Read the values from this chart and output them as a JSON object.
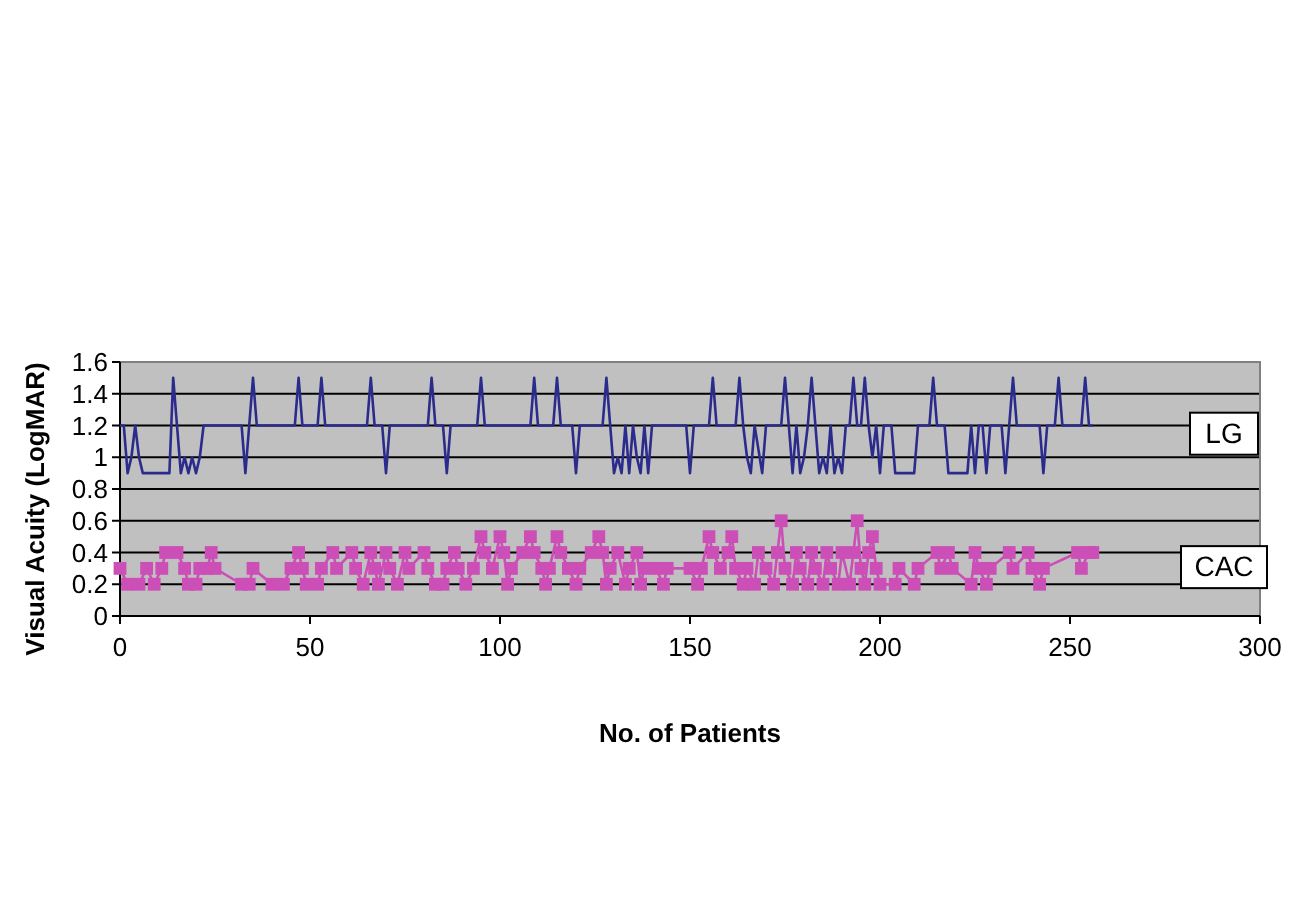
{
  "chart_data": {
    "type": "line",
    "xlabel": "No. of Patients",
    "ylabel": "Visual Acuity (LogMAR)",
    "xlim": [
      0,
      300
    ],
    "xticks": [
      0,
      50,
      100,
      150,
      200,
      250,
      300
    ],
    "ylim": [
      0,
      1.6
    ],
    "yticks": [
      0,
      0.2,
      0.4,
      0.6,
      0.8,
      1,
      1.2,
      1.4,
      1.6
    ],
    "grid": "y",
    "series": [
      {
        "name": "LG",
        "color": "#2b2b8c",
        "marker": "none",
        "x": [
          0,
          1,
          2,
          3,
          4,
          5,
          6,
          13,
          14,
          15,
          16,
          17,
          18,
          19,
          20,
          21,
          22,
          32,
          33,
          34,
          35,
          36,
          46,
          47,
          48,
          52,
          53,
          54,
          65,
          66,
          67,
          69,
          70,
          71,
          81,
          82,
          83,
          85,
          86,
          87,
          94,
          95,
          96,
          108,
          109,
          110,
          114,
          115,
          116,
          119,
          120,
          121,
          127,
          128,
          129,
          130,
          131,
          132,
          133,
          134,
          135,
          136,
          137,
          138,
          139,
          140,
          149,
          150,
          151,
          155,
          156,
          157,
          162,
          163,
          164,
          165,
          166,
          167,
          169,
          170,
          174,
          175,
          176,
          177,
          178,
          179,
          180,
          181,
          182,
          183,
          184,
          185,
          186,
          187,
          188,
          189,
          190,
          191,
          192,
          193,
          194,
          195,
          196,
          197,
          198,
          199,
          200,
          201,
          203,
          204,
          209,
          210,
          213,
          214,
          215,
          217,
          218,
          223,
          224,
          225,
          226,
          227,
          228,
          229,
          232,
          233,
          234,
          235,
          236,
          242,
          243,
          244,
          246,
          247,
          248,
          253,
          254,
          255,
          256
        ],
        "values": [
          1.2,
          1.2,
          0.9,
          1.0,
          1.2,
          1.0,
          0.9,
          0.9,
          1.5,
          1.2,
          0.9,
          1.0,
          0.9,
          1.0,
          0.9,
          1.0,
          1.2,
          1.2,
          0.9,
          1.2,
          1.5,
          1.2,
          1.2,
          1.5,
          1.2,
          1.2,
          1.5,
          1.2,
          1.2,
          1.5,
          1.2,
          1.2,
          0.9,
          1.2,
          1.2,
          1.5,
          1.2,
          1.2,
          0.9,
          1.2,
          1.2,
          1.5,
          1.2,
          1.2,
          1.5,
          1.2,
          1.2,
          1.5,
          1.2,
          1.2,
          0.9,
          1.2,
          1.2,
          1.5,
          1.2,
          0.9,
          1.0,
          0.9,
          1.2,
          0.9,
          1.2,
          1.0,
          0.9,
          1.2,
          0.9,
          1.2,
          1.2,
          0.9,
          1.2,
          1.2,
          1.5,
          1.2,
          1.2,
          1.5,
          1.2,
          1.0,
          0.9,
          1.2,
          0.9,
          1.2,
          1.2,
          1.5,
          1.2,
          0.9,
          1.2,
          0.9,
          1.0,
          1.2,
          1.5,
          1.2,
          0.9,
          1.0,
          0.9,
          1.2,
          0.9,
          1.0,
          0.9,
          1.2,
          1.2,
          1.5,
          1.2,
          1.2,
          1.5,
          1.2,
          1.0,
          1.2,
          0.9,
          1.2,
          1.2,
          0.9,
          0.9,
          1.2,
          1.2,
          1.5,
          1.2,
          1.2,
          0.9,
          0.9,
          1.2,
          0.9,
          1.2,
          1.2,
          0.9,
          1.2,
          1.2,
          0.9,
          1.2,
          1.5,
          1.2,
          1.2,
          0.9,
          1.2,
          1.2,
          1.5,
          1.2,
          1.2,
          1.5,
          1.2,
          1.2
        ]
      },
      {
        "name": "CAC",
        "color": "#cc4fb8",
        "marker": "square",
        "x": [
          0,
          2,
          5,
          7,
          9,
          11,
          12,
          15,
          17,
          18,
          20,
          21,
          23,
          24,
          25,
          32,
          34,
          35,
          40,
          43,
          45,
          47,
          48,
          49,
          52,
          53,
          56,
          57,
          61,
          62,
          64,
          66,
          67,
          68,
          70,
          71,
          73,
          75,
          76,
          80,
          81,
          83,
          85,
          86,
          88,
          89,
          91,
          93,
          95,
          96,
          98,
          100,
          101,
          102,
          103,
          106,
          108,
          109,
          111,
          112,
          113,
          115,
          116,
          118,
          120,
          121,
          124,
          126,
          127,
          128,
          129,
          131,
          133,
          134,
          136,
          137,
          138,
          141,
          143,
          144,
          150,
          152,
          153,
          155,
          156,
          158,
          160,
          161,
          162,
          164,
          165,
          167,
          168,
          170,
          172,
          173,
          174,
          175,
          177,
          178,
          179,
          181,
          182,
          183,
          185,
          186,
          187,
          189,
          190,
          192,
          193,
          194,
          195,
          196,
          197,
          198,
          199,
          200,
          204,
          205,
          209,
          210,
          215,
          216,
          218,
          219,
          224,
          225,
          226,
          228,
          229,
          234,
          235,
          239,
          240,
          242,
          243,
          252,
          253,
          255,
          256
        ],
        "values": [
          0.3,
          0.2,
          0.2,
          0.3,
          0.2,
          0.3,
          0.4,
          0.4,
          0.3,
          0.2,
          0.2,
          0.3,
          0.3,
          0.4,
          0.3,
          0.2,
          0.2,
          0.3,
          0.2,
          0.2,
          0.3,
          0.4,
          0.3,
          0.2,
          0.2,
          0.3,
          0.4,
          0.3,
          0.4,
          0.3,
          0.2,
          0.4,
          0.3,
          0.2,
          0.4,
          0.3,
          0.2,
          0.4,
          0.3,
          0.4,
          0.3,
          0.2,
          0.2,
          0.3,
          0.4,
          0.3,
          0.2,
          0.3,
          0.5,
          0.4,
          0.3,
          0.5,
          0.4,
          0.2,
          0.3,
          0.4,
          0.5,
          0.4,
          0.3,
          0.2,
          0.3,
          0.5,
          0.4,
          0.3,
          0.2,
          0.3,
          0.4,
          0.5,
          0.4,
          0.2,
          0.3,
          0.4,
          0.2,
          0.3,
          0.4,
          0.2,
          0.3,
          0.3,
          0.2,
          0.3,
          0.3,
          0.2,
          0.3,
          0.5,
          0.4,
          0.3,
          0.4,
          0.5,
          0.3,
          0.2,
          0.3,
          0.2,
          0.4,
          0.3,
          0.2,
          0.4,
          0.6,
          0.3,
          0.2,
          0.4,
          0.3,
          0.2,
          0.4,
          0.3,
          0.2,
          0.4,
          0.3,
          0.2,
          0.4,
          0.2,
          0.4,
          0.6,
          0.3,
          0.2,
          0.4,
          0.5,
          0.3,
          0.2,
          0.2,
          0.3,
          0.2,
          0.3,
          0.4,
          0.3,
          0.4,
          0.3,
          0.2,
          0.4,
          0.3,
          0.2,
          0.3,
          0.4,
          0.3,
          0.4,
          0.3,
          0.2,
          0.3,
          0.4,
          0.3,
          0.4,
          0.4
        ]
      }
    ]
  }
}
